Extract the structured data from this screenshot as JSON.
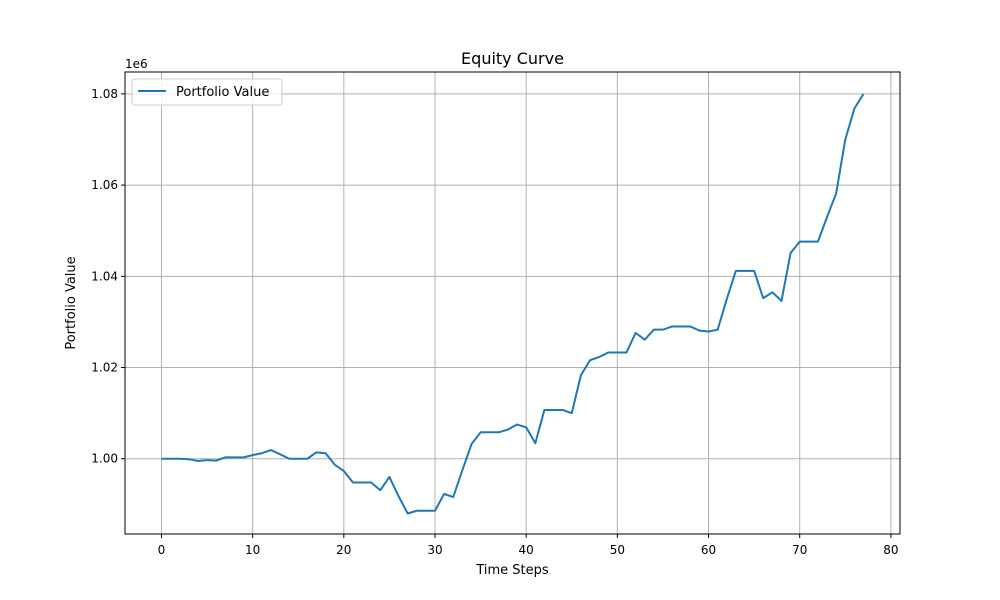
{
  "chart_data": {
    "type": "line",
    "title": "Equity Curve",
    "xlabel": "Time Steps",
    "ylabel": "Portfolio Value",
    "offset_text": "1e6",
    "xlim": [
      -4,
      81
    ],
    "ylim": [
      0.9835,
      1.0848
    ],
    "y_scale_factor": 1000000,
    "xticks": [
      0,
      10,
      20,
      30,
      40,
      50,
      60,
      70,
      80
    ],
    "yticks": [
      1.0,
      1.02,
      1.04,
      1.06,
      1.08
    ],
    "ytick_labels": [
      "1.00",
      "1.02",
      "1.04",
      "1.06",
      "1.08"
    ],
    "grid": true,
    "legend_position": "upper-left",
    "series": [
      {
        "name": "Portfolio Value",
        "color": "#1f77b4",
        "x": [
          0,
          1,
          2,
          3,
          4,
          5,
          6,
          7,
          8,
          9,
          10,
          11,
          12,
          13,
          14,
          15,
          16,
          17,
          18,
          19,
          20,
          21,
          22,
          23,
          24,
          25,
          26,
          27,
          28,
          29,
          30,
          31,
          32,
          33,
          34,
          35,
          36,
          37,
          38,
          39,
          40,
          41,
          42,
          43,
          44,
          45,
          46,
          47,
          48,
          49,
          50,
          51,
          52,
          53,
          54,
          55,
          56,
          57,
          58,
          59,
          60,
          61,
          62,
          63,
          64,
          65,
          66,
          67,
          68,
          69,
          70,
          71,
          72,
          73,
          74,
          75,
          76,
          77
        ],
        "values": [
          1.0,
          1.0,
          1.0,
          0.9999,
          0.9995,
          0.9997,
          0.9996,
          1.0003,
          1.0003,
          1.0003,
          1.0008,
          1.0012,
          1.0019,
          1.001,
          1.0,
          1.0,
          1.0,
          1.0014,
          1.0012,
          0.9987,
          0.9973,
          0.9948,
          0.9948,
          0.9948,
          0.9931,
          0.996,
          0.9918,
          0.988,
          0.9886,
          0.9886,
          0.9886,
          0.9923,
          0.9916,
          0.9975,
          1.0032,
          1.0058,
          1.0058,
          1.0058,
          1.0064,
          1.0075,
          1.0069,
          1.0034,
          1.0107,
          1.0107,
          1.0107,
          1.01,
          1.0183,
          1.0216,
          1.0223,
          1.0233,
          1.0233,
          1.0233,
          1.0276,
          1.0261,
          1.0283,
          1.0283,
          1.029,
          1.029,
          1.029,
          1.0281,
          1.0279,
          1.0283,
          1.035,
          1.0412,
          1.0412,
          1.0412,
          1.0352,
          1.0365,
          1.0346,
          1.0451,
          1.0476,
          1.0476,
          1.0476,
          1.053,
          1.0582,
          1.07,
          1.0768,
          1.08
        ]
      }
    ]
  }
}
